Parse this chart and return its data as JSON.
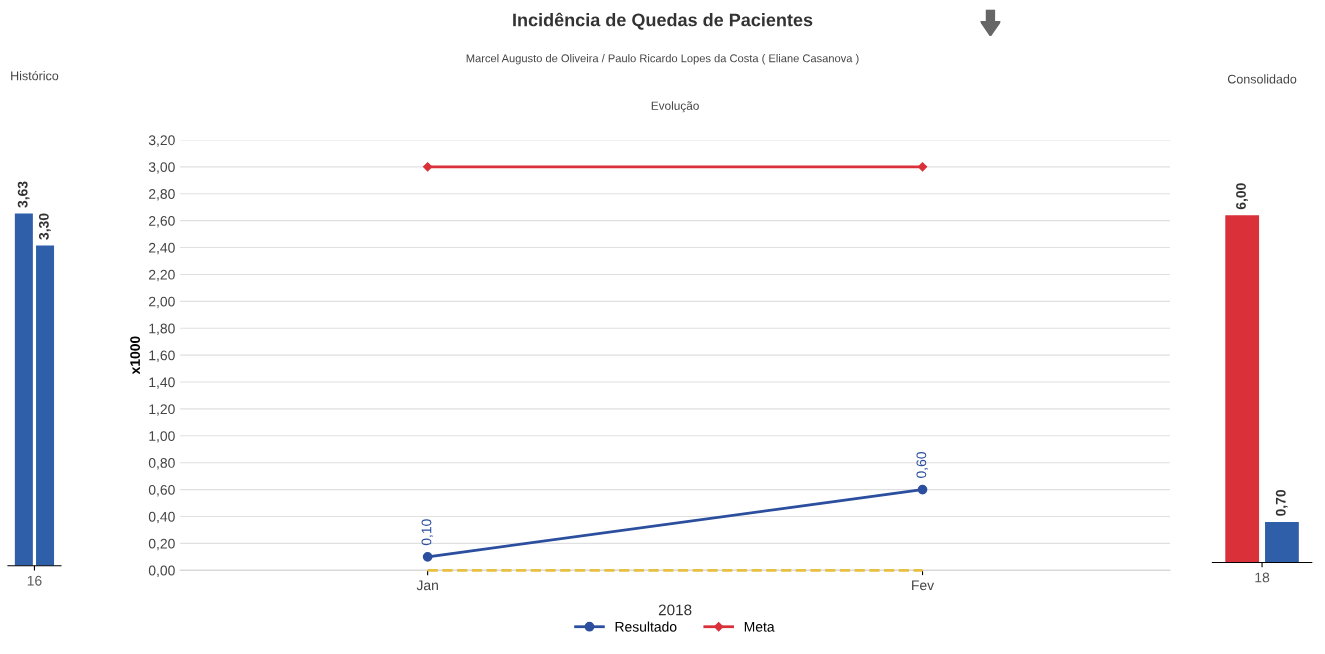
{
  "chart_data": [
    {
      "type": "bar",
      "title": "Histórico",
      "categories": [
        "16"
      ],
      "tick_labels": "x",
      "series": [
        {
          "color": "#2f5fa8",
          "values": [
            3.63
          ],
          "value_labels": [
            "3,63"
          ]
        },
        {
          "color": "#2f5fa8",
          "values": [
            3.3
          ],
          "value_labels": [
            "3,30"
          ]
        }
      ]
    },
    {
      "type": "line",
      "title": "Incidência de Quedas de Pacientes",
      "subtitle": "Marcel Augusto de Oliveira / Paulo Ricardo Lopes da Costa ( Eliane Casanova )",
      "annotations": [
        "Evolução"
      ],
      "xlabel": "2018",
      "ylabel": "x1000",
      "categories": [
        "Jan",
        "Fev"
      ],
      "ylim": [
        0,
        3.2
      ],
      "yticks": [
        {
          "value": 0,
          "label": "0,00"
        },
        {
          "value": 0.2,
          "label": "0,20"
        },
        {
          "value": 0.4,
          "label": "0,40"
        },
        {
          "value": 0.6,
          "label": "0,60"
        },
        {
          "value": 0.8,
          "label": "0,80"
        },
        {
          "value": 1.0,
          "label": "1,00"
        },
        {
          "value": 1.2,
          "label": "1,20"
        },
        {
          "value": 1.4,
          "label": "1,40"
        },
        {
          "value": 1.6,
          "label": "1,60"
        },
        {
          "value": 1.8,
          "label": "1,80"
        },
        {
          "value": 2.0,
          "label": "2,00"
        },
        {
          "value": 2.2,
          "label": "2,20"
        },
        {
          "value": 2.4,
          "label": "2,40"
        },
        {
          "value": 2.6,
          "label": "2,60"
        },
        {
          "value": 2.8,
          "label": "2,80"
        },
        {
          "value": 3.0,
          "label": "3,00"
        },
        {
          "value": 3.2,
          "label": "3,20"
        }
      ],
      "grid": "y",
      "legend": "bottom",
      "series": [
        {
          "name": "Resultado",
          "color": "#2b4f9e",
          "values": [
            0.1,
            0.6
          ],
          "value_labels": [
            "0,10",
            "0,60"
          ],
          "marker": "circle"
        },
        {
          "name": "Meta",
          "color": "#d9303a",
          "values": [
            3.0,
            3.0
          ],
          "marker": "diamond"
        },
        {
          "color": "#e8c040",
          "values": [
            0.0,
            0.0
          ],
          "line_style": "dashed",
          "marker": "none"
        }
      ]
    },
    {
      "type": "bar",
      "title": "Consolidado",
      "categories": [
        "18"
      ],
      "tick_labels": "x",
      "series": [
        {
          "color": "#d9303a",
          "values": [
            6.0
          ],
          "value_labels": [
            "6,00"
          ]
        },
        {
          "color": "#2f5fa8",
          "values": [
            0.7
          ],
          "value_labels": [
            "0,70"
          ]
        }
      ]
    }
  ]
}
